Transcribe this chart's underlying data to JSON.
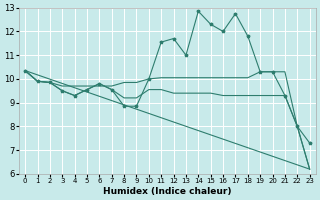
{
  "xlabel": "Humidex (Indice chaleur)",
  "xlim": [
    -0.5,
    23.5
  ],
  "ylim": [
    6,
    13
  ],
  "xticks": [
    0,
    1,
    2,
    3,
    4,
    5,
    6,
    7,
    8,
    9,
    10,
    11,
    12,
    13,
    14,
    15,
    16,
    17,
    18,
    19,
    20,
    21,
    22,
    23
  ],
  "yticks": [
    6,
    7,
    8,
    9,
    10,
    11,
    12,
    13
  ],
  "bg_color": "#c8eaea",
  "grid_color": "#ffffff",
  "line_color": "#2e7d6e",
  "line1_x": [
    0,
    1,
    2,
    3,
    4,
    5,
    6,
    7,
    8,
    9,
    10,
    11,
    12,
    13,
    14,
    15,
    16,
    17,
    18,
    19,
    20,
    21,
    22,
    23
  ],
  "line1_y": [
    10.35,
    9.9,
    9.85,
    9.5,
    9.3,
    9.55,
    9.8,
    9.55,
    8.85,
    8.85,
    10.0,
    11.55,
    11.7,
    11.0,
    12.85,
    12.3,
    12.0,
    12.75,
    11.8,
    10.3,
    10.3,
    9.3,
    8.0,
    7.3
  ],
  "line2_x": [
    0,
    1,
    2,
    3,
    4,
    5,
    6,
    7,
    8,
    9,
    10,
    11,
    12,
    13,
    14,
    15,
    16,
    17,
    18,
    19,
    20,
    21,
    22,
    23
  ],
  "line2_y": [
    10.35,
    9.9,
    9.85,
    9.7,
    9.7,
    9.7,
    9.7,
    9.7,
    9.85,
    9.85,
    10.0,
    10.05,
    10.05,
    10.05,
    10.05,
    10.05,
    10.05,
    10.05,
    10.05,
    10.3,
    10.3,
    10.3,
    8.0,
    6.2
  ],
  "line3_x": [
    0,
    1,
    2,
    3,
    4,
    5,
    6,
    7,
    8,
    9,
    10,
    11,
    12,
    13,
    14,
    15,
    16,
    17,
    18,
    19,
    20,
    21,
    22,
    23
  ],
  "line3_y": [
    10.35,
    9.9,
    9.85,
    9.5,
    9.3,
    9.55,
    9.8,
    9.55,
    9.2,
    9.2,
    9.55,
    9.55,
    9.4,
    9.4,
    9.4,
    9.4,
    9.3,
    9.3,
    9.3,
    9.3,
    9.3,
    9.3,
    8.0,
    6.2
  ],
  "line4_x": [
    0,
    23
  ],
  "line4_y": [
    10.35,
    6.2
  ],
  "xlabel_fontsize": 6.5,
  "tick_fontsize_x": 5.0,
  "tick_fontsize_y": 6.0
}
